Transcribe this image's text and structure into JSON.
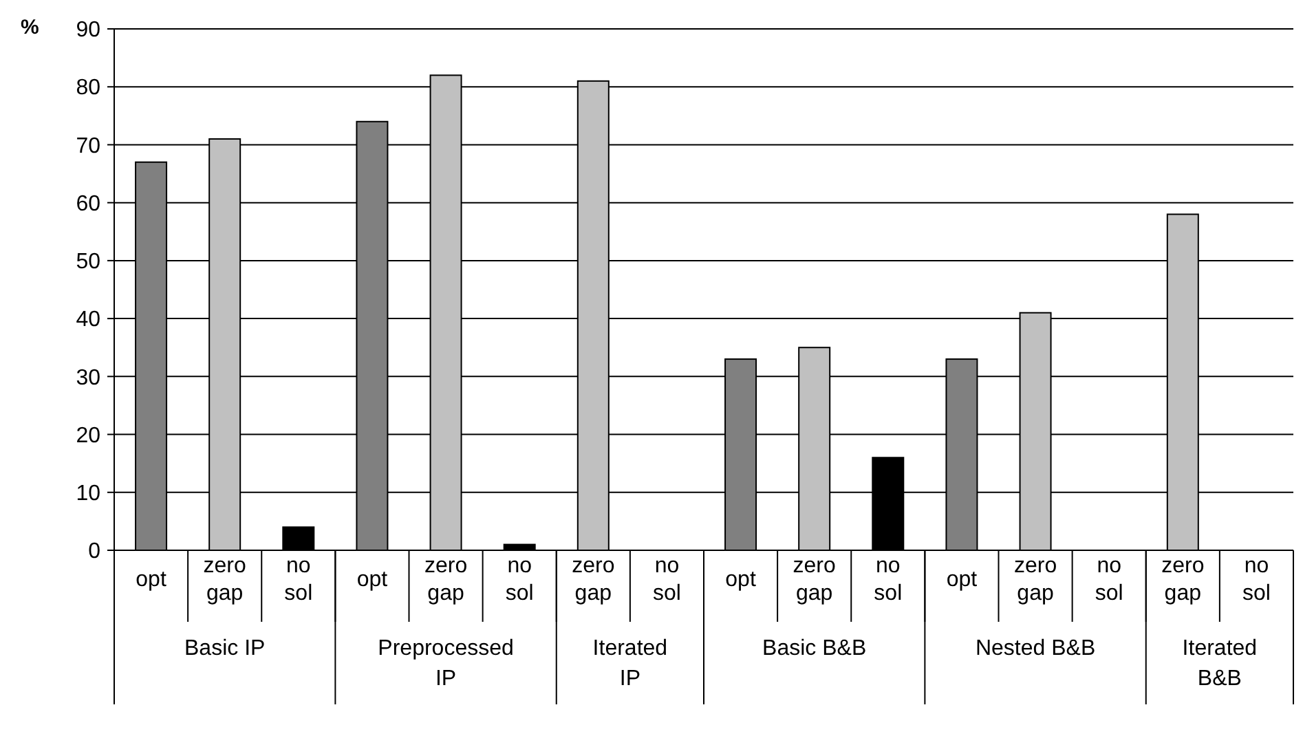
{
  "chart_data": {
    "type": "bar",
    "ylabel": "%",
    "categories": [
      "Basic IP",
      "Preprocessed IP",
      "Iterated IP",
      "Basic B&B",
      "Nested B&B",
      "Iterated B&B"
    ],
    "series": [
      {
        "name": "opt",
        "color": "#808080",
        "values": [
          67,
          74,
          null,
          33,
          33,
          null
        ]
      },
      {
        "name": "zero gap",
        "color": "#c0c0c0",
        "values": [
          71,
          82,
          81,
          35,
          41,
          58
        ]
      },
      {
        "name": "no sol",
        "color": "#000000",
        "values": [
          4,
          1,
          0,
          16,
          0,
          0
        ]
      }
    ],
    "ylim": [
      0,
      90
    ],
    "yticks": [
      0,
      10,
      20,
      30,
      40,
      50,
      60,
      70,
      80,
      90
    ],
    "grid": "y"
  }
}
